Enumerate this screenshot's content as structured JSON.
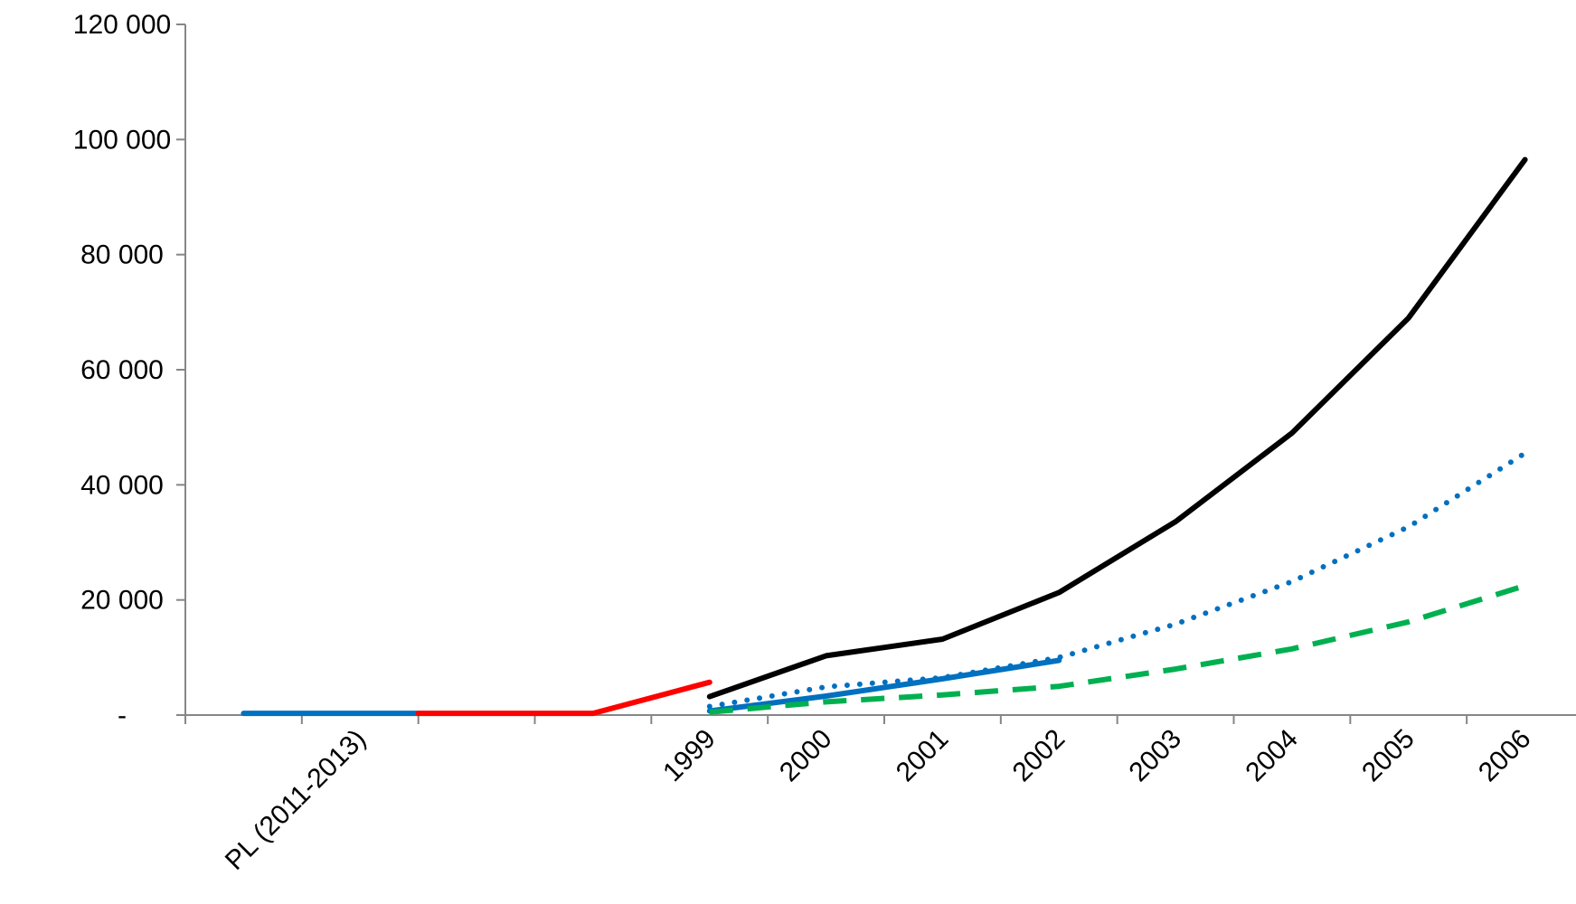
{
  "chart_data": {
    "type": "line",
    "title": "",
    "xlabel": "",
    "ylabel": "",
    "ylim": [
      0,
      120000
    ],
    "yticks": [
      0,
      20000,
      40000,
      60000,
      80000,
      100000,
      120000
    ],
    "ytick_labels": [
      "-",
      "20 000",
      "40 000",
      "60 000",
      "80 000",
      "100 000",
      "120 000"
    ],
    "grid": false,
    "legend": "none",
    "categories": [
      "",
      "PL (2011-2013)",
      "",
      "",
      "1999",
      "2000",
      "2001",
      "2002",
      "2003",
      "2004",
      "2005",
      "2006"
    ],
    "series": [
      {
        "color": "#0070C0",
        "style": "solid",
        "points": [
          [
            0,
            300
          ],
          [
            1.5,
            300
          ]
        ]
      },
      {
        "color": "#FF0000",
        "style": "solid",
        "points": [
          [
            1.5,
            300
          ],
          [
            3,
            300
          ],
          [
            4,
            5700
          ]
        ]
      },
      {
        "color": "#000000",
        "style": "solid",
        "points": [
          [
            4,
            3200
          ],
          [
            5,
            10300
          ],
          [
            6,
            13200
          ],
          [
            7,
            21300
          ],
          [
            8,
            33600
          ],
          [
            9,
            49000
          ],
          [
            10,
            69000
          ],
          [
            11,
            96500
          ]
        ]
      },
      {
        "color": "#0070C0",
        "style": "dotted",
        "points": [
          [
            4,
            1500
          ],
          [
            5,
            4900
          ],
          [
            6,
            6500
          ],
          [
            7,
            10000
          ],
          [
            8,
            15800
          ],
          [
            9,
            23200
          ],
          [
            10,
            32700
          ],
          [
            11,
            45500
          ]
        ]
      },
      {
        "color": "#0070C0",
        "style": "solid",
        "points": [
          [
            4,
            700
          ],
          [
            5,
            3300
          ],
          [
            6,
            6300
          ],
          [
            7,
            9500
          ]
        ]
      },
      {
        "color": "#00B050",
        "style": "dashed",
        "points": [
          [
            4,
            500
          ],
          [
            5,
            2300
          ],
          [
            6,
            3500
          ],
          [
            7,
            5000
          ],
          [
            8,
            8000
          ],
          [
            9,
            11500
          ],
          [
            10,
            16200
          ],
          [
            11,
            22500
          ]
        ]
      }
    ],
    "colors": {
      "axis": "#868686",
      "text": "#000000"
    }
  }
}
